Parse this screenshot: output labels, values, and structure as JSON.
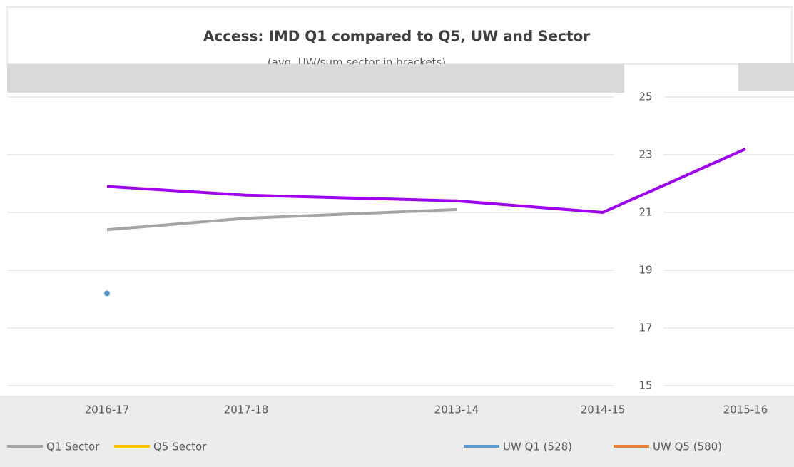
{
  "chart_data": {
    "type": "line",
    "title": "Access: IMD Q1 compared to Q5, UW and Sector",
    "subtitle": "(avg. UW/sum sector in brackets)",
    "categories": [
      "2016-17",
      "2017-18",
      "2013-14",
      "2014-15",
      "2015-16"
    ],
    "series": [
      {
        "name": "Q1 Sector",
        "color": "#a5a5a5",
        "values": [
          20.4,
          20.8,
          21.1,
          null,
          null
        ]
      },
      {
        "name": "Q5 Sector",
        "color": "#ffc000",
        "values": [
          null,
          null,
          null,
          null,
          null
        ]
      },
      {
        "name": "UW Q1 (528)",
        "color": "#5b9bd5",
        "values": [
          18.2,
          null,
          null,
          null,
          null
        ]
      },
      {
        "name": "UW Q5 (580)",
        "color": "#ed7d31",
        "values": [
          null,
          null,
          null,
          null,
          null
        ]
      },
      {
        "color": "#a000f0",
        "values": [
          21.9,
          21.6,
          21.4,
          21.0,
          23.2
        ]
      }
    ],
    "ylim": [
      15,
      25
    ],
    "yticks": [
      15,
      17,
      19,
      21,
      23,
      25
    ],
    "grid": true
  }
}
